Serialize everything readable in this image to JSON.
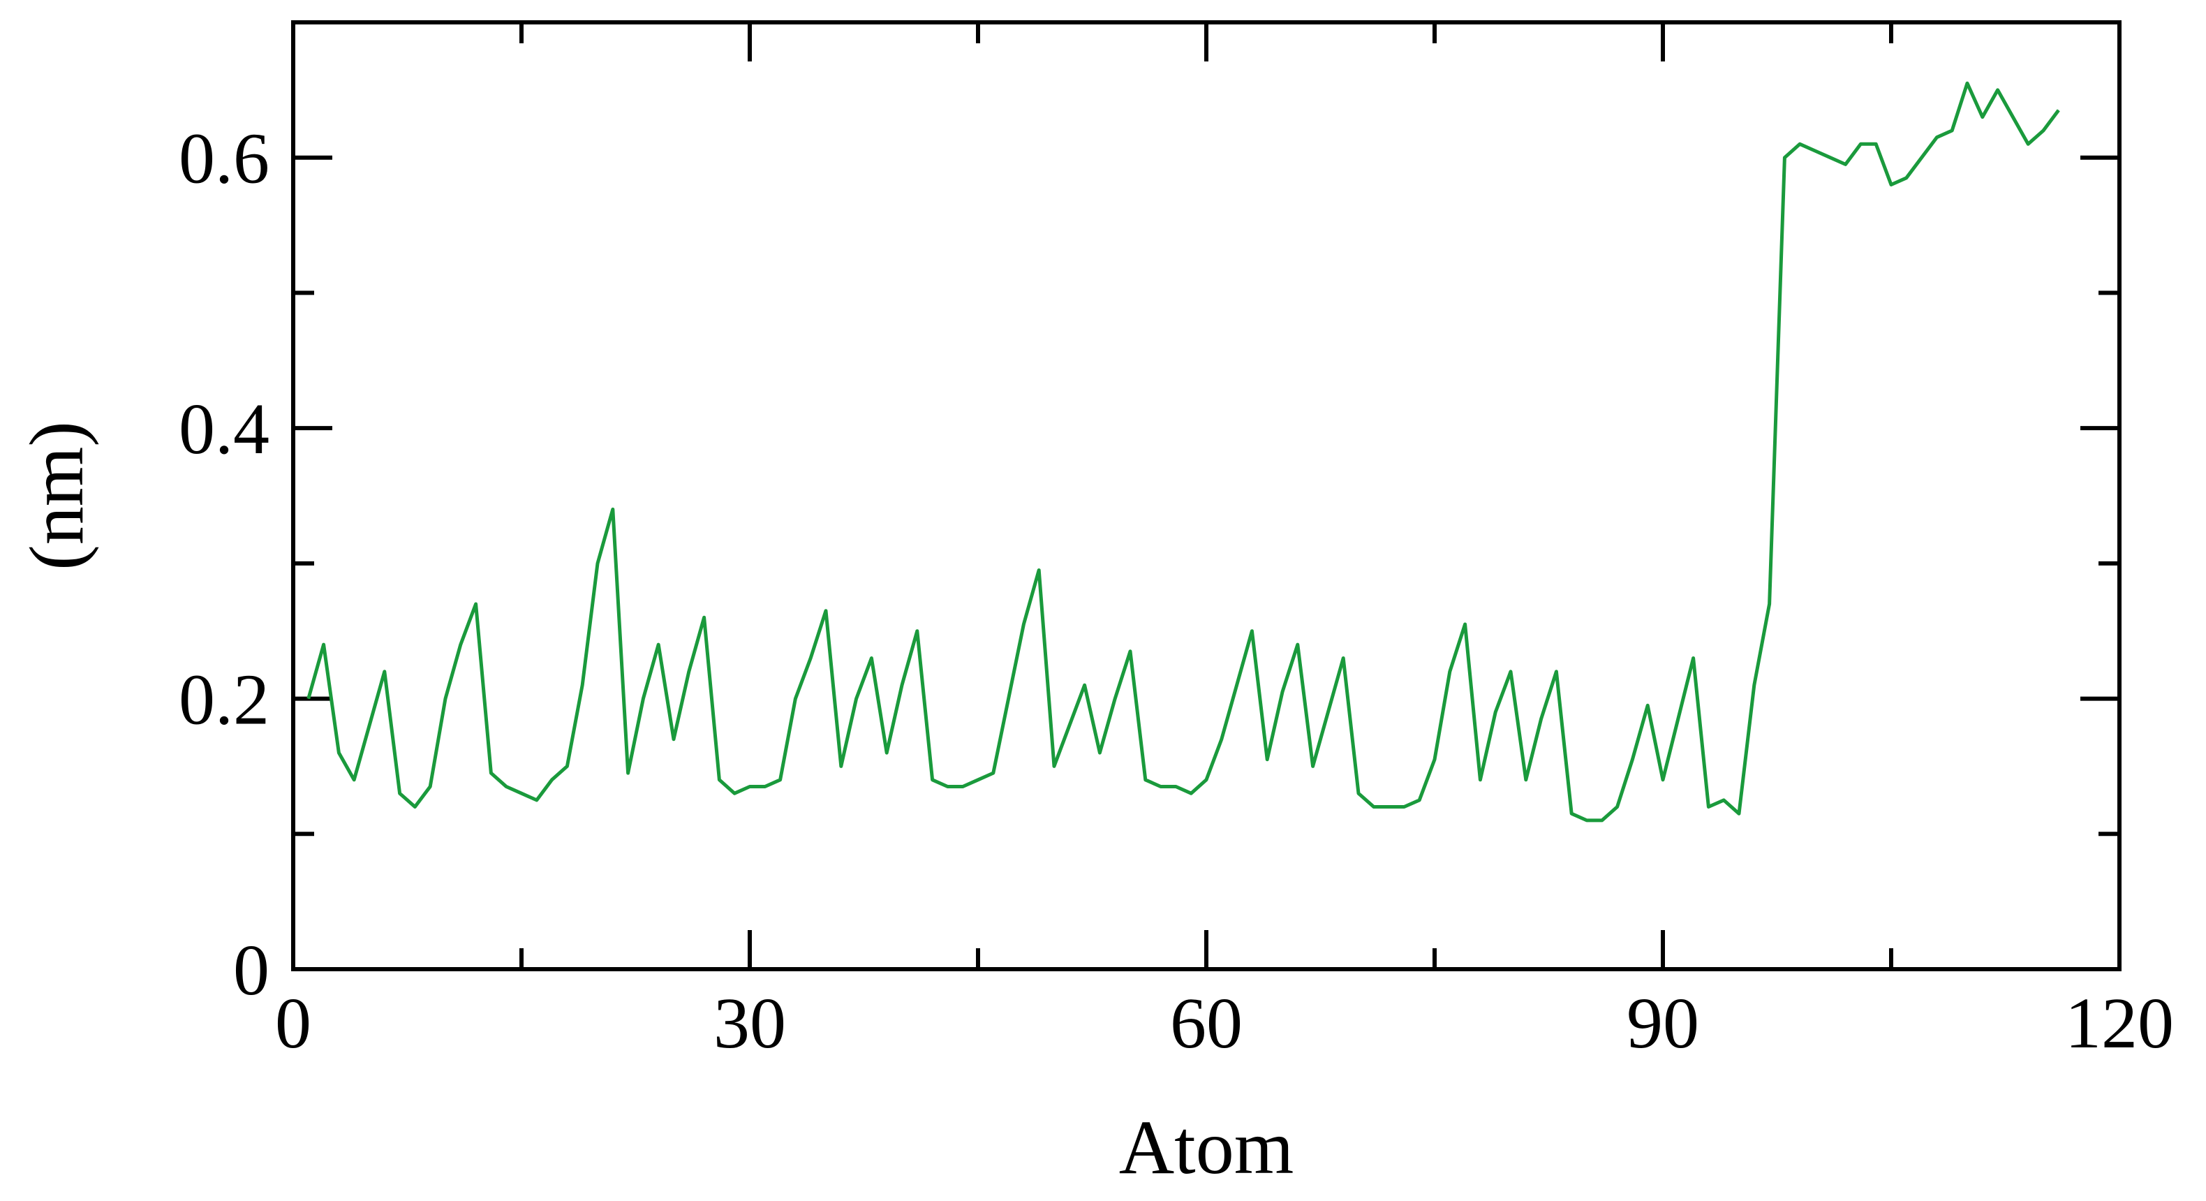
{
  "chart_data": {
    "type": "line",
    "title": "",
    "xlabel": "Atom",
    "ylabel": "(nm)",
    "xlim": [
      0,
      120
    ],
    "ylim": [
      0,
      0.7
    ],
    "xticks": [
      0,
      30,
      60,
      90,
      120
    ],
    "xtick_labels": [
      "0",
      "30",
      "60",
      "90",
      "120"
    ],
    "xminor": [
      15,
      45,
      75,
      105
    ],
    "yticks": [
      0,
      0.2,
      0.4,
      0.6
    ],
    "ytick_labels": [
      "0",
      "0.2",
      "0.4",
      "0.6"
    ],
    "yminor": [
      0.1,
      0.3,
      0.5
    ],
    "grid": false,
    "legend": "none",
    "series": [
      {
        "color": "#1a9a3c",
        "x": [
          1,
          2,
          3,
          4,
          5,
          6,
          7,
          8,
          9,
          10,
          11,
          12,
          13,
          14,
          15,
          16,
          17,
          18,
          19,
          20,
          21,
          22,
          23,
          24,
          25,
          26,
          27,
          28,
          29,
          30,
          31,
          32,
          33,
          34,
          35,
          36,
          37,
          38,
          39,
          40,
          41,
          42,
          43,
          44,
          45,
          46,
          47,
          48,
          49,
          50,
          51,
          52,
          53,
          54,
          55,
          56,
          57,
          58,
          59,
          60,
          61,
          62,
          63,
          64,
          65,
          66,
          67,
          68,
          69,
          70,
          71,
          72,
          73,
          74,
          75,
          76,
          77,
          78,
          79,
          80,
          81,
          82,
          83,
          84,
          85,
          86,
          87,
          88,
          89,
          90,
          91,
          92,
          93,
          94,
          95,
          96,
          97,
          98,
          99,
          100,
          101,
          102,
          103,
          104,
          105,
          106,
          107,
          108,
          109,
          110,
          111,
          112,
          113,
          114,
          115,
          116
        ],
        "y": [
          0.2,
          0.24,
          0.16,
          0.14,
          0.18,
          0.22,
          0.13,
          0.12,
          0.135,
          0.2,
          0.24,
          0.27,
          0.145,
          0.135,
          0.13,
          0.125,
          0.14,
          0.15,
          0.21,
          0.3,
          0.34,
          0.145,
          0.2,
          0.24,
          0.17,
          0.22,
          0.26,
          0.14,
          0.13,
          0.135,
          0.135,
          0.14,
          0.2,
          0.23,
          0.265,
          0.15,
          0.2,
          0.23,
          0.16,
          0.21,
          0.25,
          0.14,
          0.135,
          0.135,
          0.14,
          0.145,
          0.2,
          0.255,
          0.295,
          0.15,
          0.18,
          0.21,
          0.16,
          0.2,
          0.235,
          0.14,
          0.135,
          0.135,
          0.13,
          0.14,
          0.17,
          0.21,
          0.25,
          0.155,
          0.205,
          0.24,
          0.15,
          0.19,
          0.23,
          0.13,
          0.12,
          0.12,
          0.12,
          0.125,
          0.155,
          0.22,
          0.255,
          0.14,
          0.19,
          0.22,
          0.14,
          0.185,
          0.22,
          0.115,
          0.11,
          0.11,
          0.12,
          0.155,
          0.195,
          0.14,
          0.185,
          0.23,
          0.12,
          0.125,
          0.115,
          0.21,
          0.27,
          0.6,
          0.61,
          0.605,
          0.6,
          0.595,
          0.61,
          0.61,
          0.58,
          0.585,
          0.6,
          0.615,
          0.62,
          0.655,
          0.63,
          0.65,
          0.63,
          0.61,
          0.62,
          0.635
        ]
      }
    ]
  }
}
